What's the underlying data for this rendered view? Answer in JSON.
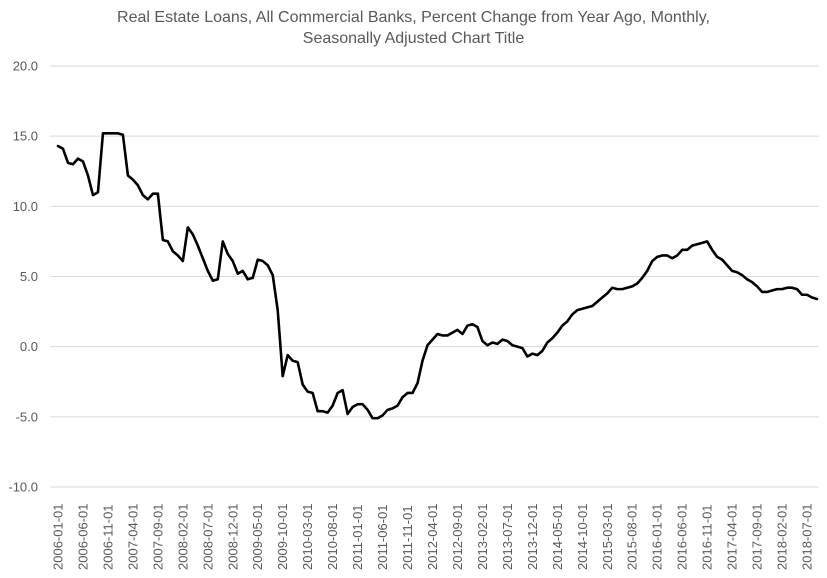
{
  "chart_data": {
    "type": "line",
    "title_lines": [
      "Real Estate Loans, All Commercial Banks, Percent Change from Year Ago, Monthly,",
      "Seasonally Adjusted Chart Title"
    ],
    "xlabel": "",
    "ylabel": "",
    "ylim": [
      -10,
      20
    ],
    "yticks": [
      "-10.0",
      "-5.0",
      "0.0",
      "5.0",
      "10.0",
      "15.0",
      "20.0"
    ],
    "xticks": [
      "2006-01-01",
      "2006-06-01",
      "2006-11-01",
      "2007-04-01",
      "2007-09-01",
      "2008-02-01",
      "2008-07-01",
      "2008-12-01",
      "2009-05-01",
      "2009-10-01",
      "2010-03-01",
      "2010-08-01",
      "2011-01-01",
      "2011-06-01",
      "2011-11-01",
      "2012-04-01",
      "2012-09-01",
      "2013-02-01",
      "2013-07-01",
      "2013-12-01",
      "2014-05-01",
      "2014-10-01",
      "2015-03-01",
      "2015-08-01",
      "2016-01-01",
      "2016-06-01",
      "2016-11-01",
      "2017-04-01",
      "2017-09-01",
      "2018-02-01",
      "2018-07-01"
    ],
    "grid": true,
    "legend": "none",
    "line_color": "#000000",
    "start_month": "2006-01",
    "values": [
      14.3,
      14.1,
      13.1,
      13.0,
      13.4,
      13.2,
      12.2,
      10.8,
      11.0,
      15.2,
      15.2,
      15.2,
      15.2,
      15.1,
      12.2,
      11.9,
      11.5,
      10.8,
      10.5,
      10.9,
      10.9,
      7.6,
      7.5,
      6.8,
      6.5,
      6.1,
      8.5,
      8.0,
      7.2,
      6.3,
      5.4,
      4.7,
      4.8,
      7.5,
      6.6,
      6.1,
      5.2,
      5.4,
      4.8,
      4.9,
      6.2,
      6.1,
      5.8,
      5.1,
      2.6,
      -2.1,
      -0.6,
      -1.0,
      -1.1,
      -2.7,
      -3.2,
      -3.3,
      -4.6,
      -4.6,
      -4.7,
      -4.2,
      -3.3,
      -3.1,
      -4.8,
      -4.3,
      -4.1,
      -4.1,
      -4.5,
      -5.1,
      -5.1,
      -4.9,
      -4.5,
      -4.4,
      -4.2,
      -3.6,
      -3.3,
      -3.3,
      -2.6,
      -1.0,
      0.1,
      0.5,
      0.9,
      0.8,
      0.8,
      1.0,
      1.2,
      0.9,
      1.5,
      1.6,
      1.4,
      0.4,
      0.1,
      0.3,
      0.2,
      0.5,
      0.4,
      0.1,
      0.0,
      -0.1,
      -0.7,
      -0.5,
      -0.6,
      -0.3,
      0.3,
      0.6,
      1.0,
      1.5,
      1.8,
      2.3,
      2.6,
      2.7,
      2.8,
      2.9,
      3.2,
      3.5,
      3.8,
      4.2,
      4.1,
      4.1,
      4.2,
      4.3,
      4.5,
      4.9,
      5.4,
      6.1,
      6.4,
      6.5,
      6.5,
      6.3,
      6.5,
      6.9,
      6.9,
      7.2,
      7.3,
      7.4,
      7.5,
      6.9,
      6.4,
      6.2,
      5.8,
      5.4,
      5.3,
      5.1,
      4.8,
      4.6,
      4.3,
      3.9,
      3.9,
      4.0,
      4.1,
      4.1,
      4.2,
      4.2,
      4.1,
      3.7,
      3.7,
      3.5,
      3.4
    ]
  }
}
